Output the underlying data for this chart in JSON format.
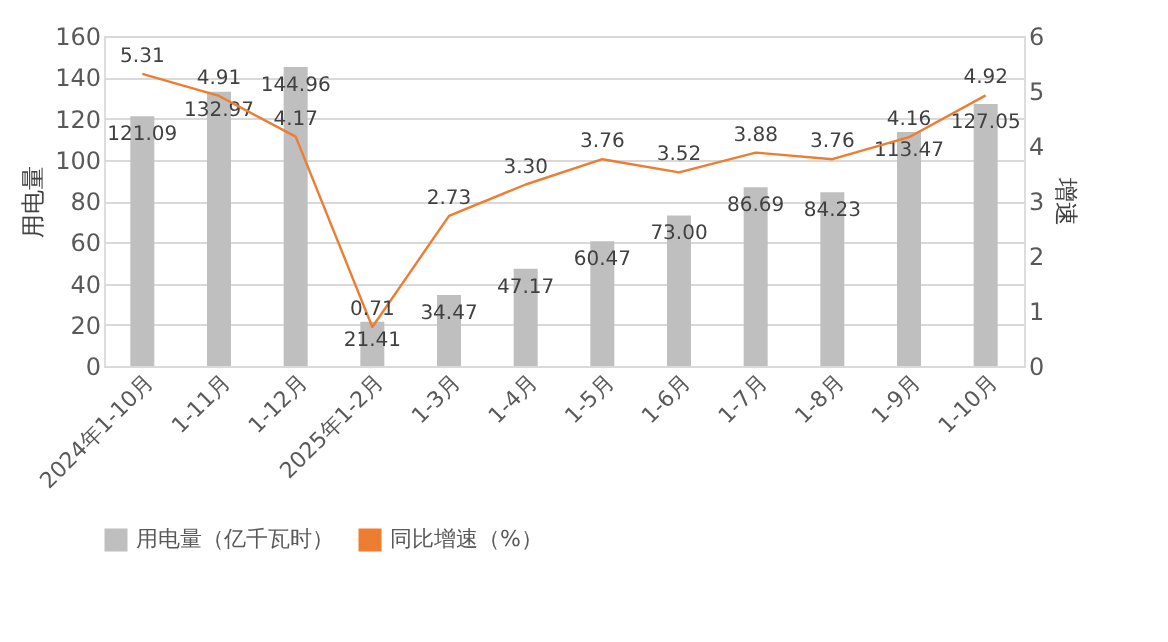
{
  "chart_data": {
    "type": "bar",
    "categories": [
      "2024年1-10月",
      "1-11月",
      "1-12月",
      "2025年1-2月",
      "1-3月",
      "1-4月",
      "1-5月",
      "1-6月",
      "1-7月",
      "1-8月",
      "1-9月",
      "1-10月"
    ],
    "ylabel": "用电量",
    "y2label": "增速",
    "series": [
      {
        "name": "用电量（亿千瓦时）",
        "color": "#bfbfbf",
        "values": [
          121.09,
          132.97,
          144.96,
          21.41,
          34.47,
          47.17,
          60.47,
          73.0,
          86.69,
          84.23,
          113.47,
          127.05
        ],
        "value_labels": [
          "121.09",
          "132.97",
          "144.96",
          "21.41",
          "34.47",
          "47.17",
          "60.47",
          "73.00",
          "86.69",
          "84.23",
          "113.47",
          "127.05"
        ]
      },
      {
        "name": "同比增速（%）",
        "type": "line",
        "axis": "y2",
        "color": "#ed7d31",
        "marker": "none",
        "values": [
          5.31,
          4.91,
          4.17,
          0.71,
          2.73,
          3.3,
          3.76,
          3.52,
          3.88,
          3.76,
          4.16,
          4.92
        ],
        "value_labels": [
          "5.31",
          "4.91",
          "4.17",
          "0.71",
          "2.73",
          "3.30",
          "3.76",
          "3.52",
          "3.88",
          "3.76",
          "4.16",
          "4.92"
        ]
      }
    ],
    "ylim": [
      0,
      160
    ],
    "yticks": [
      0,
      20,
      40,
      60,
      80,
      100,
      120,
      140,
      160
    ],
    "y2lim": [
      0,
      6
    ],
    "y2ticks": [
      0,
      1,
      2,
      3,
      4,
      5,
      6
    ],
    "data_labels": true,
    "grid": "y",
    "legend": "bottom"
  }
}
